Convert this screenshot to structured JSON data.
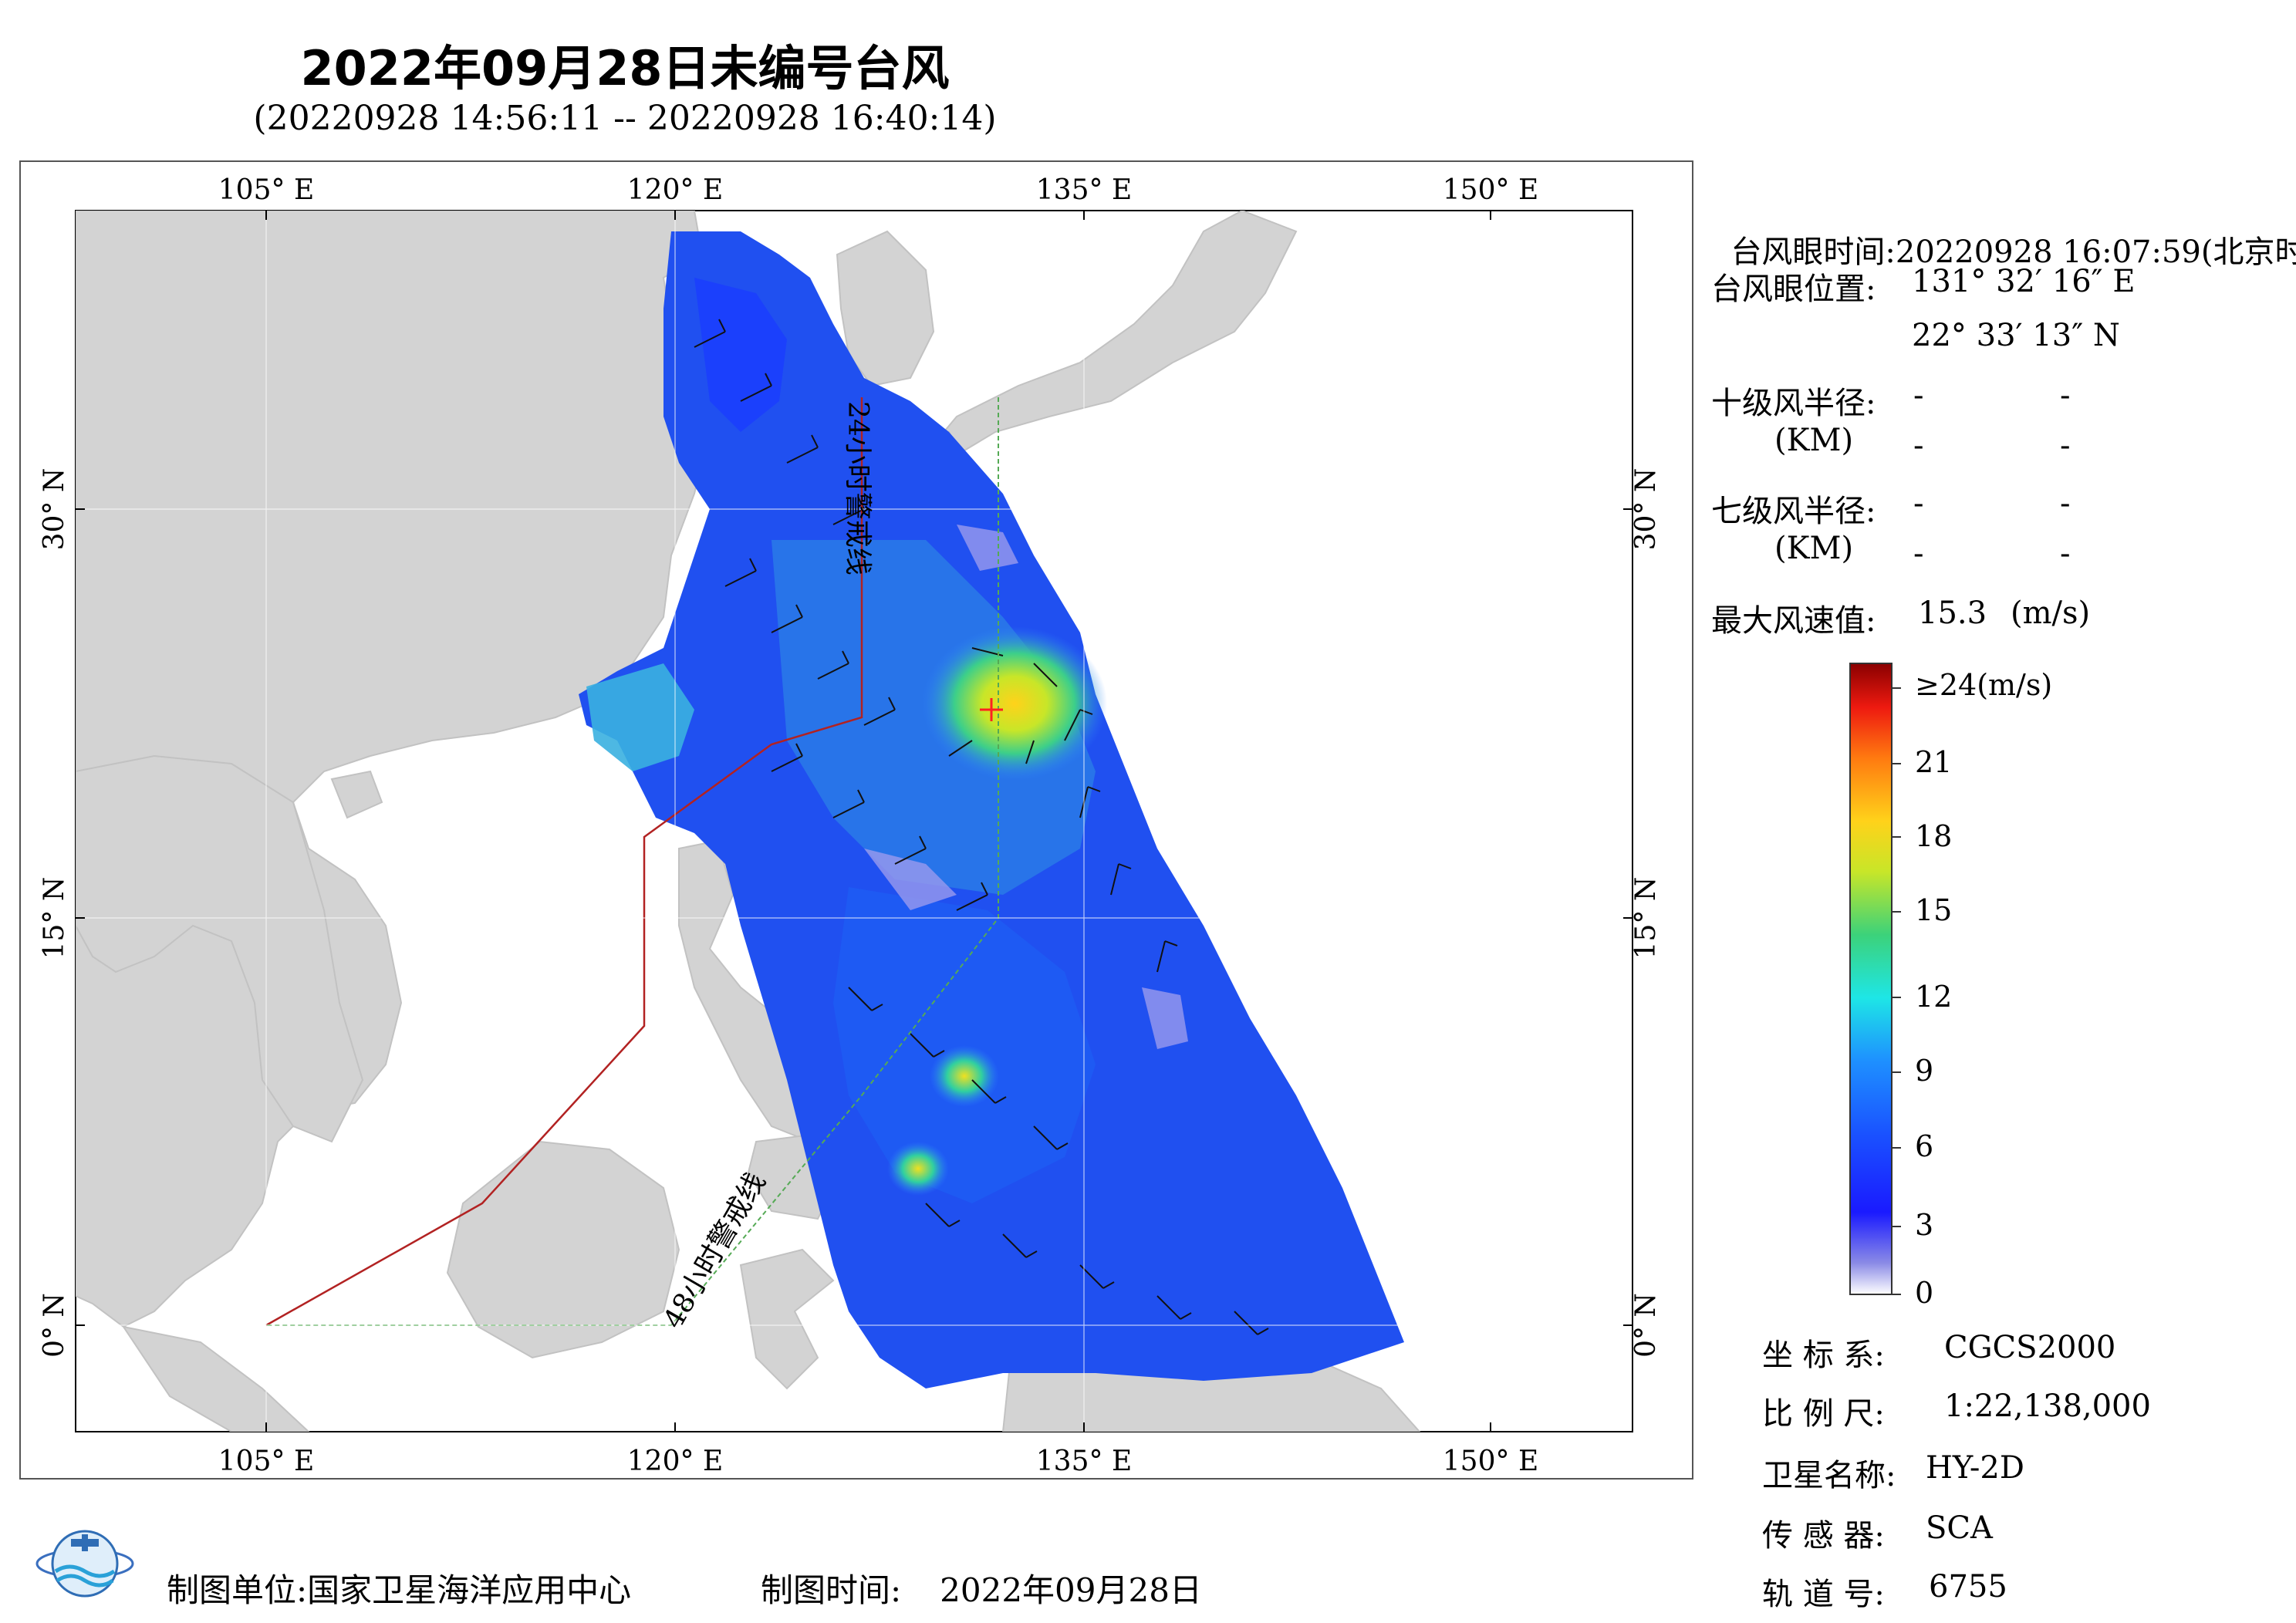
{
  "header": {
    "title": "2022年09月28日未编号台风",
    "subtitle": "(20220928 14:56:11 -- 20220928 16:40:14)"
  },
  "map": {
    "lon_labels_top": [
      "105° E",
      "120° E",
      "135° E",
      "150° E"
    ],
    "lon_labels_bottom": [
      "105° E",
      "120° E",
      "135° E",
      "150° E"
    ],
    "lat_labels_left": [
      "30° N",
      "15° N",
      "0° N"
    ],
    "lat_labels_right": [
      "30° N",
      "15° N",
      "0° N"
    ],
    "warning_line_24h": "24小时警戒线",
    "warning_line_48h": "48小时警戒线",
    "colors": {
      "land": "#d3d3d3",
      "sea": "#ffffff",
      "line_24h": "#b22222",
      "line_48h": "#55aa55",
      "wind_low": "#1a3cff",
      "wind_mid": "#2c6ef2",
      "wind_high": "#f2d21c"
    }
  },
  "info": {
    "eye_time_label": "台风眼时间:",
    "eye_time_value": "20220928 16:07:59(北京时)",
    "eye_pos_label": "台风眼位置:",
    "eye_lon": "131° 32′ 16″ E",
    "eye_lat": "22° 33′ 13″ N",
    "r10_label": "十级风半径:",
    "r10_unit": "(KM)",
    "r7_label": "七级风半径:",
    "r7_unit": "(KM)",
    "dash": "-",
    "max_wind_label": "最大风速值:",
    "max_wind_value": "15.3",
    "max_wind_unit": "(m/s)"
  },
  "colorbar": {
    "labels": [
      "≥24(m/s)",
      "21",
      "18",
      "15",
      "12",
      "9",
      "6",
      "3",
      "0"
    ]
  },
  "meta": {
    "crs_label": "坐 标 系:",
    "crs_value": "CGCS2000",
    "scale_label": "比 例 尺:",
    "scale_value": "1:22,138,000",
    "satellite_label": "卫星名称:",
    "satellite_value": "HY-2D",
    "sensor_label": "传 感 器:",
    "sensor_value": "SCA",
    "orbit_label": "轨 道 号:",
    "orbit_value": "6755"
  },
  "footer": {
    "producer_label": "制图单位:",
    "producer_value": "国家卫星海洋应用中心",
    "date_label": "制图时间:",
    "date_value": "2022年09月28日"
  }
}
